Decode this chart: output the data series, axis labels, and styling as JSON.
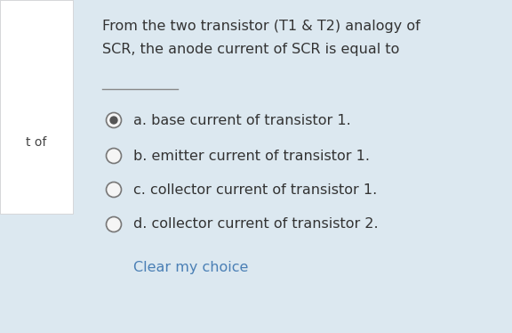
{
  "bg_color": "#dce8f0",
  "left_panel_bg": "#ffffff",
  "left_panel_border": "#cccccc",
  "left_strip_text": "t of",
  "left_strip_text_color": "#444444",
  "title_line1": "From the two transistor (T1 & T2) analogy of",
  "title_line2": "SCR, the anode current of SCR is equal to",
  "underline_color": "#888888",
  "options": [
    "a. base current of transistor 1.",
    "b. emitter current of transistor 1.",
    "c. collector current of transistor 1.",
    "d. collector current of transistor 2."
  ],
  "selected_option": 0,
  "clear_text": "Clear my choice",
  "clear_color": "#4a7fb5",
  "radio_outer_color": "#777777",
  "radio_selected_fill": "#555555",
  "radio_empty_fill": "#f5f5f5",
  "text_color": "#333333",
  "title_fontsize": 11.5,
  "option_fontsize": 11.5,
  "strip_fontsize": 10
}
